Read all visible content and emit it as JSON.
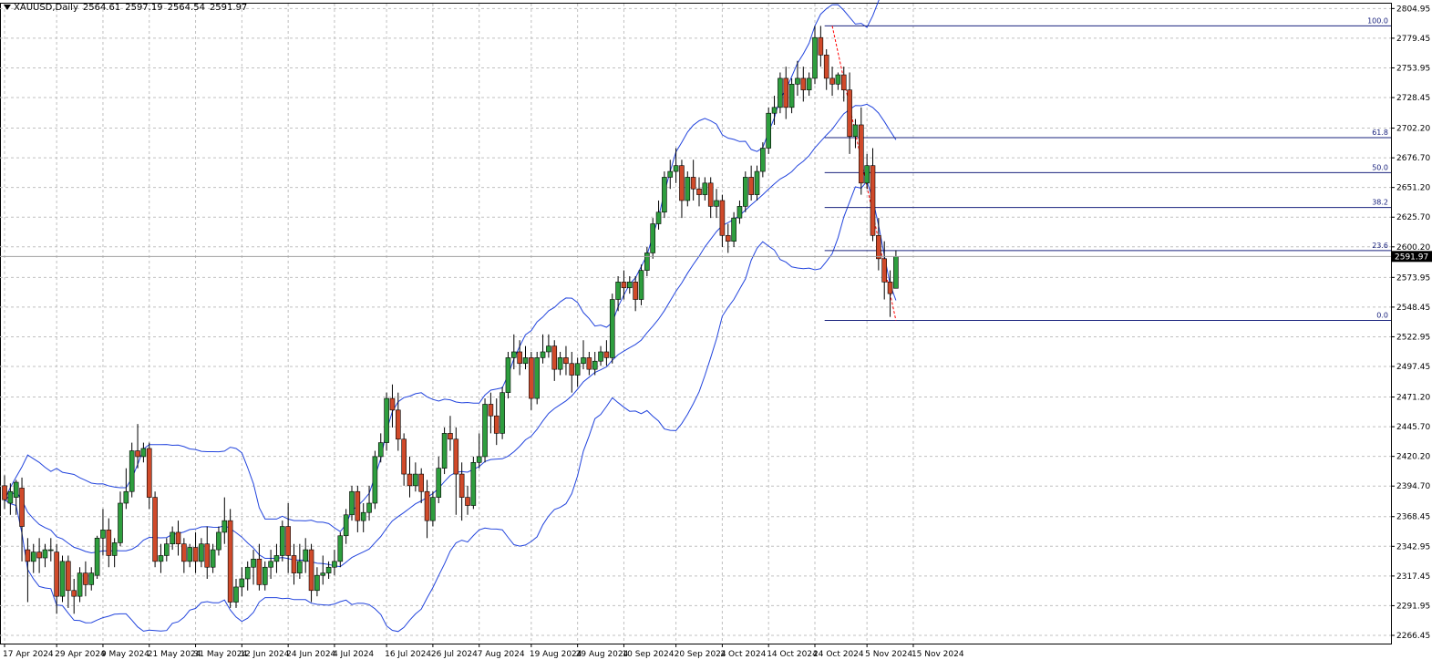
{
  "header": {
    "symbol": "XAUUSD,Daily",
    "open": "2564.61",
    "high": "2597.19",
    "low": "2564.54",
    "close": "2591.97"
  },
  "chart_data": {
    "type": "candlestick",
    "symbol": "XAUUSD",
    "timeframe": "Daily",
    "ylim": [
      2266.45,
      2806.0
    ],
    "y_ticks": [
      "2804.95",
      "2779.45",
      "2753.95",
      "2728.45",
      "2702.20",
      "2676.70",
      "2651.20",
      "2625.70",
      "2600.20",
      "2573.95",
      "2548.45",
      "2522.95",
      "2497.45",
      "2471.20",
      "2445.70",
      "2420.20",
      "2394.70",
      "2368.45",
      "2342.95",
      "2317.45",
      "2291.95",
      "2266.45"
    ],
    "x_ticks": [
      {
        "index": 0,
        "label": "17 Apr 2024"
      },
      {
        "index": 9,
        "label": "29 Apr 2024"
      },
      {
        "index": 17,
        "label": "9 May 2024"
      },
      {
        "index": 25,
        "label": "21 May 2024"
      },
      {
        "index": 33,
        "label": "31 May 2024"
      },
      {
        "index": 41,
        "label": "12 Jun 2024"
      },
      {
        "index": 49,
        "label": "24 Jun 2024"
      },
      {
        "index": 57,
        "label": "4 Jul 2024"
      },
      {
        "index": 66,
        "label": "16 Jul 2024"
      },
      {
        "index": 74,
        "label": "26 Jul 2024"
      },
      {
        "index": 82,
        "label": "7 Aug 2024"
      },
      {
        "index": 91,
        "label": "19 Aug 2024"
      },
      {
        "index": 99,
        "label": "29 Aug 2024"
      },
      {
        "index": 107,
        "label": "10 Sep 2024"
      },
      {
        "index": 116,
        "label": "20 Sep 2024"
      },
      {
        "index": 124,
        "label": "2 Oct 2024"
      },
      {
        "index": 132,
        "label": "14 Oct 2024"
      },
      {
        "index": 140,
        "label": "24 Oct 2024"
      },
      {
        "index": 149,
        "label": "5 Nov 2024"
      },
      {
        "index": 157,
        "label": "15 Nov 2024"
      }
    ],
    "current_price": "2591.97",
    "colors": {
      "bull": "#2e9e3e",
      "bear": "#d04a2a",
      "band": "#2244dd",
      "fib": "#1a237e",
      "trend": "#ff0000",
      "grid": "#c0c0c0"
    },
    "fibonacci": {
      "levels": [
        {
          "label": "100.0",
          "value": 2790
        },
        {
          "label": "61.8",
          "value": 2694
        },
        {
          "label": "50.0",
          "value": 2664
        },
        {
          "label": "38.2",
          "value": 2634
        },
        {
          "label": "23.6",
          "value": 2597
        },
        {
          "label": "0.0",
          "value": 2537
        }
      ]
    },
    "candles": [
      [
        2395,
        2404,
        2383,
        2375
      ],
      [
        2380,
        2397,
        2390,
        2370
      ],
      [
        2385,
        2400,
        2398,
        2370
      ],
      [
        2393,
        2402,
        2360,
        2330
      ],
      [
        2340,
        2350,
        2330,
        2295
      ],
      [
        2330,
        2345,
        2338,
        2320
      ],
      [
        2338,
        2350,
        2333,
        2320
      ],
      [
        2333,
        2345,
        2340,
        2325
      ],
      [
        2340,
        2350,
        2340,
        2330
      ],
      [
        2338,
        2345,
        2300,
        2285
      ],
      [
        2300,
        2335,
        2330,
        2295
      ],
      [
        2330,
        2335,
        2305,
        2290
      ],
      [
        2305,
        2315,
        2300,
        2285
      ],
      [
        2300,
        2325,
        2320,
        2295
      ],
      [
        2320,
        2330,
        2310,
        2300
      ],
      [
        2310,
        2325,
        2320,
        2305
      ],
      [
        2318,
        2352,
        2350,
        2315
      ],
      [
        2350,
        2375,
        2357,
        2335
      ],
      [
        2357,
        2367,
        2335,
        2325
      ],
      [
        2335,
        2350,
        2346,
        2325
      ],
      [
        2346,
        2390,
        2380,
        2343
      ],
      [
        2380,
        2410,
        2390,
        2375
      ],
      [
        2390,
        2432,
        2425,
        2385
      ],
      [
        2425,
        2448,
        2420,
        2410
      ],
      [
        2420,
        2432,
        2427,
        2415
      ],
      [
        2427,
        2432,
        2385,
        2375
      ],
      [
        2385,
        2390,
        2330,
        2325
      ],
      [
        2330,
        2345,
        2335,
        2320
      ],
      [
        2335,
        2350,
        2345,
        2330
      ],
      [
        2345,
        2360,
        2355,
        2340
      ],
      [
        2355,
        2365,
        2345,
        2335
      ],
      [
        2345,
        2350,
        2330,
        2320
      ],
      [
        2330,
        2345,
        2342,
        2325
      ],
      [
        2342,
        2355,
        2330,
        2320
      ],
      [
        2330,
        2350,
        2345,
        2325
      ],
      [
        2345,
        2360,
        2325,
        2315
      ],
      [
        2325,
        2345,
        2340,
        2320
      ],
      [
        2340,
        2360,
        2355,
        2335
      ],
      [
        2355,
        2385,
        2365,
        2345
      ],
      [
        2365,
        2375,
        2295,
        2290
      ],
      [
        2295,
        2315,
        2308,
        2290
      ],
      [
        2308,
        2325,
        2315,
        2300
      ],
      [
        2315,
        2330,
        2325,
        2305
      ],
      [
        2325,
        2340,
        2332,
        2310
      ],
      [
        2332,
        2345,
        2310,
        2305
      ],
      [
        2310,
        2330,
        2325,
        2305
      ],
      [
        2325,
        2340,
        2330,
        2315
      ],
      [
        2330,
        2345,
        2335,
        2320
      ],
      [
        2335,
        2365,
        2360,
        2330
      ],
      [
        2360,
        2380,
        2335,
        2320
      ],
      [
        2335,
        2345,
        2320,
        2310
      ],
      [
        2320,
        2345,
        2330,
        2315
      ],
      [
        2330,
        2350,
        2340,
        2320
      ],
      [
        2340,
        2345,
        2305,
        2295
      ],
      [
        2305,
        2325,
        2318,
        2300
      ],
      [
        2318,
        2335,
        2320,
        2310
      ],
      [
        2320,
        2330,
        2325,
        2315
      ],
      [
        2325,
        2340,
        2330,
        2318
      ],
      [
        2330,
        2355,
        2352,
        2325
      ],
      [
        2352,
        2375,
        2370,
        2345
      ],
      [
        2370,
        2395,
        2390,
        2365
      ],
      [
        2390,
        2395,
        2365,
        2355
      ],
      [
        2365,
        2380,
        2372,
        2355
      ],
      [
        2372,
        2395,
        2380,
        2365
      ],
      [
        2380,
        2425,
        2420,
        2375
      ],
      [
        2420,
        2440,
        2432,
        2415
      ],
      [
        2432,
        2475,
        2470,
        2425
      ],
      [
        2470,
        2482,
        2460,
        2445
      ],
      [
        2460,
        2475,
        2435,
        2425
      ],
      [
        2435,
        2440,
        2405,
        2395
      ],
      [
        2405,
        2420,
        2395,
        2385
      ],
      [
        2395,
        2415,
        2405,
        2390
      ],
      [
        2405,
        2410,
        2390,
        2380
      ],
      [
        2390,
        2400,
        2365,
        2350
      ],
      [
        2365,
        2390,
        2385,
        2360
      ],
      [
        2385,
        2420,
        2410,
        2380
      ],
      [
        2410,
        2445,
        2440,
        2405
      ],
      [
        2440,
        2455,
        2435,
        2425
      ],
      [
        2435,
        2445,
        2405,
        2370
      ],
      [
        2405,
        2415,
        2385,
        2365
      ],
      [
        2385,
        2395,
        2378,
        2370
      ],
      [
        2378,
        2420,
        2415,
        2375
      ],
      [
        2415,
        2440,
        2420,
        2410
      ],
      [
        2420,
        2470,
        2465,
        2415
      ],
      [
        2465,
        2475,
        2455,
        2440
      ],
      [
        2455,
        2470,
        2440,
        2430
      ],
      [
        2440,
        2480,
        2475,
        2435
      ],
      [
        2475,
        2510,
        2505,
        2470
      ],
      [
        2505,
        2525,
        2510,
        2495
      ],
      [
        2510,
        2520,
        2500,
        2490
      ],
      [
        2500,
        2515,
        2505,
        2495
      ],
      [
        2505,
        2510,
        2470,
        2460
      ],
      [
        2470,
        2510,
        2505,
        2465
      ],
      [
        2505,
        2525,
        2510,
        2500
      ],
      [
        2510,
        2525,
        2515,
        2505
      ],
      [
        2515,
        2520,
        2495,
        2485
      ],
      [
        2495,
        2510,
        2505,
        2490
      ],
      [
        2505,
        2515,
        2500,
        2490
      ],
      [
        2500,
        2510,
        2490,
        2475
      ],
      [
        2490,
        2505,
        2500,
        2480
      ],
      [
        2500,
        2520,
        2505,
        2495
      ],
      [
        2505,
        2510,
        2495,
        2490
      ],
      [
        2495,
        2510,
        2502,
        2490
      ],
      [
        2502,
        2515,
        2510,
        2498
      ],
      [
        2510,
        2520,
        2505,
        2498
      ],
      [
        2505,
        2560,
        2555,
        2500
      ],
      [
        2555,
        2575,
        2570,
        2545
      ],
      [
        2570,
        2580,
        2565,
        2555
      ],
      [
        2565,
        2575,
        2570,
        2560
      ],
      [
        2570,
        2575,
        2555,
        2545
      ],
      [
        2555,
        2585,
        2580,
        2550
      ],
      [
        2580,
        2600,
        2595,
        2575
      ],
      [
        2595,
        2625,
        2620,
        2590
      ],
      [
        2620,
        2640,
        2630,
        2615
      ],
      [
        2630,
        2665,
        2660,
        2625
      ],
      [
        2660,
        2675,
        2665,
        2650
      ],
      [
        2665,
        2685,
        2670,
        2655
      ],
      [
        2670,
        2675,
        2640,
        2625
      ],
      [
        2640,
        2665,
        2660,
        2635
      ],
      [
        2660,
        2675,
        2650,
        2640
      ],
      [
        2650,
        2660,
        2645,
        2635
      ],
      [
        2645,
        2660,
        2655,
        2640
      ],
      [
        2655,
        2660,
        2635,
        2625
      ],
      [
        2635,
        2650,
        2640,
        2625
      ],
      [
        2640,
        2645,
        2610,
        2600
      ],
      [
        2610,
        2620,
        2605,
        2595
      ],
      [
        2605,
        2630,
        2625,
        2600
      ],
      [
        2625,
        2640,
        2635,
        2620
      ],
      [
        2635,
        2665,
        2660,
        2630
      ],
      [
        2660,
        2670,
        2645,
        2640
      ],
      [
        2645,
        2670,
        2665,
        2640
      ],
      [
        2665,
        2690,
        2685,
        2660
      ],
      [
        2685,
        2720,
        2715,
        2680
      ],
      [
        2715,
        2730,
        2720,
        2705
      ],
      [
        2720,
        2750,
        2745,
        2715
      ],
      [
        2745,
        2755,
        2720,
        2710
      ],
      [
        2720,
        2745,
        2740,
        2715
      ],
      [
        2740,
        2760,
        2745,
        2730
      ],
      [
        2745,
        2755,
        2735,
        2725
      ],
      [
        2735,
        2750,
        2745,
        2730
      ],
      [
        2745,
        2790,
        2780,
        2740
      ],
      [
        2780,
        2790,
        2765,
        2755
      ],
      [
        2765,
        2770,
        2745,
        2735
      ],
      [
        2745,
        2755,
        2740,
        2730
      ],
      [
        2740,
        2750,
        2748,
        2735
      ],
      [
        2748,
        2755,
        2735,
        2725
      ],
      [
        2735,
        2750,
        2695,
        2680
      ],
      [
        2695,
        2710,
        2705,
        2685
      ],
      [
        2705,
        2720,
        2655,
        2645
      ],
      [
        2655,
        2680,
        2670,
        2650
      ],
      [
        2670,
        2685,
        2610,
        2605
      ],
      [
        2610,
        2625,
        2590,
        2580
      ],
      [
        2590,
        2605,
        2570,
        2555
      ],
      [
        2570,
        2580,
        2560,
        2540
      ],
      [
        2564.61,
        2597.19,
        2591.97,
        2564.54
      ]
    ]
  }
}
